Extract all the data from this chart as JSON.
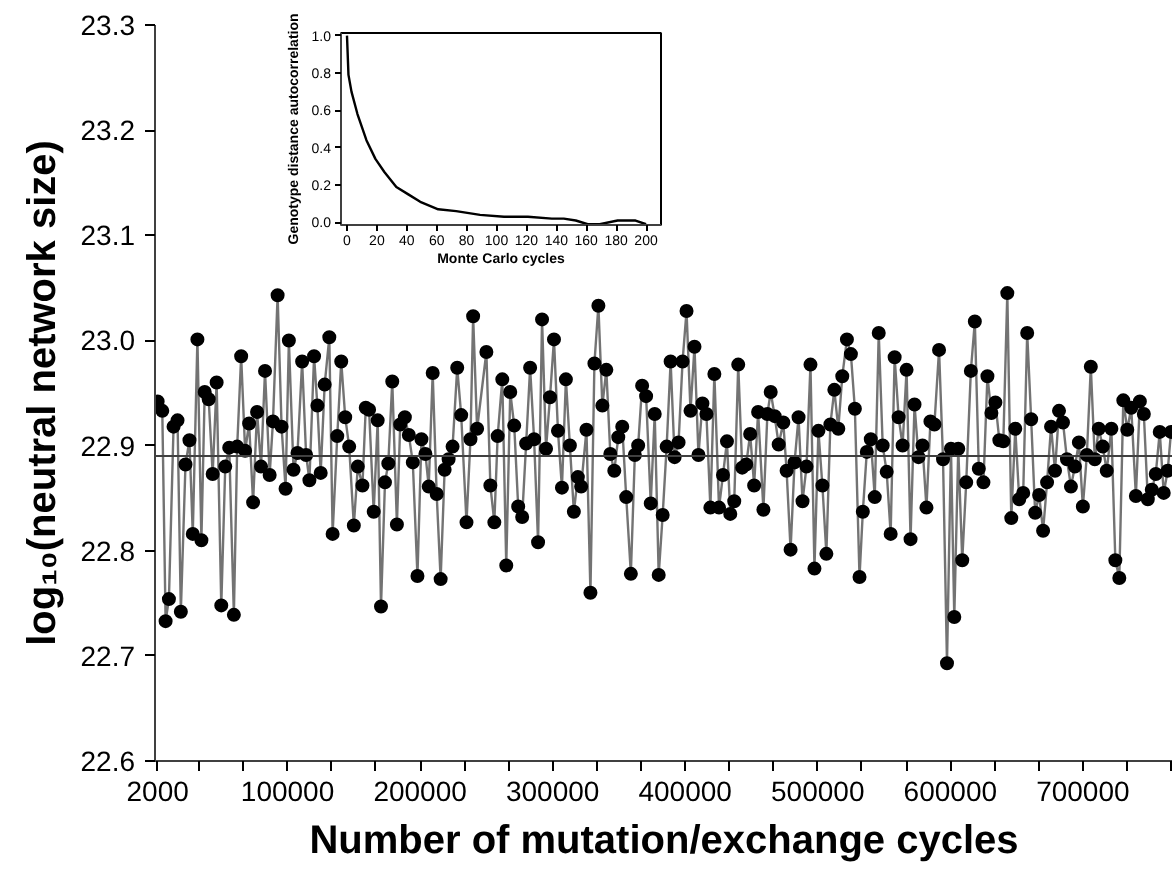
{
  "chart_data": [
    {
      "type": "line",
      "xlabel": "Number of mutation/exchange cycles",
      "ylabel": "log₁₀(neutral network size)",
      "marker": "circle",
      "grid": false,
      "xlim": [
        0,
        768000
      ],
      "ylim": [
        22.6,
        23.3
      ],
      "xticks": [
        2000,
        {
          "value": 33333,
          "label": null
        },
        {
          "value": 66667,
          "label": null
        },
        100000,
        {
          "value": 133333,
          "label": null
        },
        {
          "value": 166667,
          "label": null
        },
        200000,
        {
          "value": 233333,
          "label": null
        },
        {
          "value": 266667,
          "label": null
        },
        300000,
        {
          "value": 333333,
          "label": null
        },
        {
          "value": 366667,
          "label": null
        },
        400000,
        {
          "value": 433333,
          "label": null
        },
        {
          "value": 466667,
          "label": null
        },
        500000,
        {
          "value": 533333,
          "label": null
        },
        {
          "value": 566667,
          "label": null
        },
        600000,
        {
          "value": 633333,
          "label": null
        },
        {
          "value": 666667,
          "label": null
        },
        700000,
        {
          "value": 733333,
          "label": null
        },
        {
          "value": 766667,
          "label": null
        }
      ],
      "yticks": [
        22.6,
        22.7,
        22.8,
        22.9,
        {
          "value": 23,
          "label": "23.0"
        },
        23.1,
        23.2,
        23.3
      ],
      "ref_lines": [
        {
          "axis": "y",
          "value": 22.89,
          "color": "#404040"
        }
      ],
      "series": [
        {
          "color": "#000000",
          "x": [
            2000,
            5500,
            8000,
            10500,
            14000,
            17000,
            19500,
            23000,
            26000,
            28500,
            32000,
            35000,
            37500,
            40500,
            43500,
            46500,
            50000,
            53000,
            56000,
            59500,
            62000,
            65000,
            68000,
            71000,
            74000,
            77000,
            80000,
            83000,
            86500,
            89000,
            92500,
            95500,
            98500,
            101000,
            104500,
            107500,
            111000,
            114000,
            116500,
            120000,
            122500,
            125000,
            128000,
            131500,
            134000,
            137500,
            140500,
            143500,
            146500,
            150000,
            153000,
            156500,
            159000,
            161500,
            165000,
            168000,
            170500,
            173500,
            176000,
            179000,
            182500,
            185000,
            188500,
            191500,
            194500,
            198000,
            201000,
            204000,
            206500,
            209500,
            212500,
            215500,
            218500,
            221500,
            224500,
            228000,
            231000,
            235000,
            238000,
            240000,
            243000,
            250000,
            253000,
            256000,
            258500,
            262000,
            265000,
            268000,
            271000,
            274000,
            277000,
            280000,
            283000,
            286000,
            289000,
            292000,
            295000,
            298000,
            301000,
            304000,
            307000,
            310000,
            313000,
            316000,
            319000,
            321500,
            325500,
            328500,
            331500,
            334500,
            337500,
            340500,
            343500,
            346500,
            349500,
            352500,
            355500,
            359000,
            362000,
            364500,
            367500,
            370500,
            374000,
            377000,
            380000,
            383000,
            386000,
            389000,
            392000,
            395000,
            398000,
            401000,
            404000,
            407000,
            410000,
            413000,
            416000,
            419000,
            422000,
            425500,
            428500,
            431500,
            434000,
            437000,
            440000,
            443000,
            446000,
            449000,
            452000,
            455000,
            459000,
            462000,
            464500,
            467500,
            470500,
            474000,
            476500,
            479500,
            482500,
            485500,
            488500,
            491500,
            494500,
            497500,
            500500,
            503500,
            506500,
            509500,
            512500,
            515500,
            518500,
            522000,
            525000,
            528000,
            531500,
            534000,
            537000,
            540000,
            543000,
            546000,
            549000,
            552000,
            555000,
            558000,
            561000,
            564000,
            567000,
            570000,
            573000,
            576000,
            579000,
            582000,
            585000,
            588000,
            591500,
            594500,
            597500,
            600500,
            603000,
            606000,
            609000,
            612000,
            615500,
            618500,
            621500,
            625000,
            628000,
            631000,
            634000,
            637000,
            640000,
            643000,
            646000,
            649000,
            652000,
            655000,
            658000,
            661000,
            664000,
            667000,
            670000,
            673000,
            676000,
            679000,
            682000,
            685000,
            688000,
            691000,
            694000,
            697000,
            700000,
            703000,
            706000,
            709000,
            712000,
            715000,
            718000,
            721500,
            724500,
            727500,
            730500,
            733500,
            736500,
            740000,
            743000,
            746000,
            749000,
            752000,
            755000,
            758000,
            761000,
            764000,
            766500
          ],
          "values": [
            22.942,
            22.933,
            22.733,
            22.754,
            22.918,
            22.924,
            22.742,
            22.882,
            22.905,
            22.816,
            23.001,
            22.81,
            22.951,
            22.944,
            22.873,
            22.96,
            22.748,
            22.88,
            22.898,
            22.739,
            22.899,
            22.985,
            22.895,
            22.921,
            22.846,
            22.932,
            22.88,
            22.971,
            22.872,
            22.923,
            23.043,
            22.918,
            22.859,
            23.0,
            22.877,
            22.893,
            22.98,
            22.891,
            22.867,
            22.985,
            22.938,
            22.874,
            22.958,
            23.003,
            22.816,
            22.909,
            22.98,
            22.927,
            22.899,
            22.824,
            22.88,
            22.862,
            22.936,
            22.934,
            22.837,
            22.924,
            22.747,
            22.865,
            22.883,
            22.961,
            22.825,
            22.92,
            22.927,
            22.91,
            22.884,
            22.776,
            22.906,
            22.892,
            22.861,
            22.969,
            22.854,
            22.773,
            22.877,
            22.887,
            22.899,
            22.974,
            22.929,
            22.827,
            22.906,
            23.023,
            22.916,
            22.989,
            22.862,
            22.827,
            22.909,
            22.963,
            22.786,
            22.951,
            22.919,
            22.842,
            22.832,
            22.902,
            22.974,
            22.906,
            22.808,
            23.02,
            22.897,
            22.946,
            23.001,
            22.914,
            22.86,
            22.963,
            22.9,
            22.837,
            22.87,
            22.861,
            22.915,
            22.76,
            22.978,
            23.033,
            22.938,
            22.972,
            22.892,
            22.876,
            22.908,
            22.918,
            22.851,
            22.778,
            22.891,
            22.9,
            22.957,
            22.947,
            22.845,
            22.93,
            22.777,
            22.834,
            22.899,
            22.98,
            22.889,
            22.903,
            22.98,
            23.028,
            22.933,
            22.994,
            22.891,
            22.94,
            22.93,
            22.841,
            22.968,
            22.841,
            22.872,
            22.904,
            22.835,
            22.847,
            22.977,
            22.879,
            22.882,
            22.911,
            22.862,
            22.932,
            22.839,
            22.93,
            22.951,
            22.928,
            22.901,
            22.922,
            22.876,
            22.801,
            22.884,
            22.927,
            22.847,
            22.88,
            22.977,
            22.783,
            22.914,
            22.862,
            22.797,
            22.92,
            22.953,
            22.916,
            22.966,
            23.001,
            22.987,
            22.935,
            22.775,
            22.837,
            22.894,
            22.906,
            22.851,
            23.007,
            22.9,
            22.875,
            22.816,
            22.984,
            22.927,
            22.9,
            22.972,
            22.811,
            22.939,
            22.889,
            22.9,
            22.841,
            22.923,
            22.92,
            22.991,
            22.887,
            22.693,
            22.897,
            22.737,
            22.897,
            22.791,
            22.865,
            22.971,
            23.018,
            22.878,
            22.865,
            22.966,
            22.931,
            22.941,
            22.905,
            22.904,
            23.045,
            22.831,
            22.916,
            22.849,
            22.855,
            23.007,
            22.925,
            22.836,
            22.853,
            22.819,
            22.865,
            22.918,
            22.876,
            22.933,
            22.922,
            22.887,
            22.861,
            22.88,
            22.903,
            22.842,
            22.891,
            22.975,
            22.887,
            22.916,
            22.899,
            22.876,
            22.916,
            22.791,
            22.774,
            22.943,
            22.915,
            22.936,
            22.852,
            22.942,
            22.93,
            22.849,
            22.858,
            22.873,
            22.913,
            22.855,
            22.876,
            22.913
          ]
        }
      ]
    },
    {
      "type": "line",
      "xlabel": "Monte Carlo cycles",
      "ylabel": "Genotype distance autocorrelation",
      "marker": "none",
      "grid": false,
      "xlim": [
        -4,
        210
      ],
      "ylim": [
        -0.014,
        1.014
      ],
      "xticks": [
        0,
        20,
        40,
        60,
        80,
        100,
        120,
        140,
        160,
        180,
        200
      ],
      "yticks": [
        {
          "value": 0,
          "label": "0.0"
        },
        0.2,
        0.4,
        0.6,
        0.8,
        {
          "value": 1,
          "label": "1.0"
        }
      ],
      "series": [
        {
          "color": "#000000",
          "x": [
            0,
            1,
            3,
            7,
            13,
            19,
            25,
            33,
            41,
            49,
            61,
            73,
            89,
            105,
            121,
            137,
            145,
            153,
            161,
            169,
            181,
            193,
            200
          ],
          "values": [
            1.0,
            0.79,
            0.7,
            0.58,
            0.44,
            0.34,
            0.27,
            0.19,
            0.15,
            0.11,
            0.07,
            0.06,
            0.04,
            0.03,
            0.03,
            0.02,
            0.02,
            0.01,
            -0.01,
            -0.01,
            0.01,
            0.01,
            -0.01
          ]
        }
      ]
    }
  ]
}
